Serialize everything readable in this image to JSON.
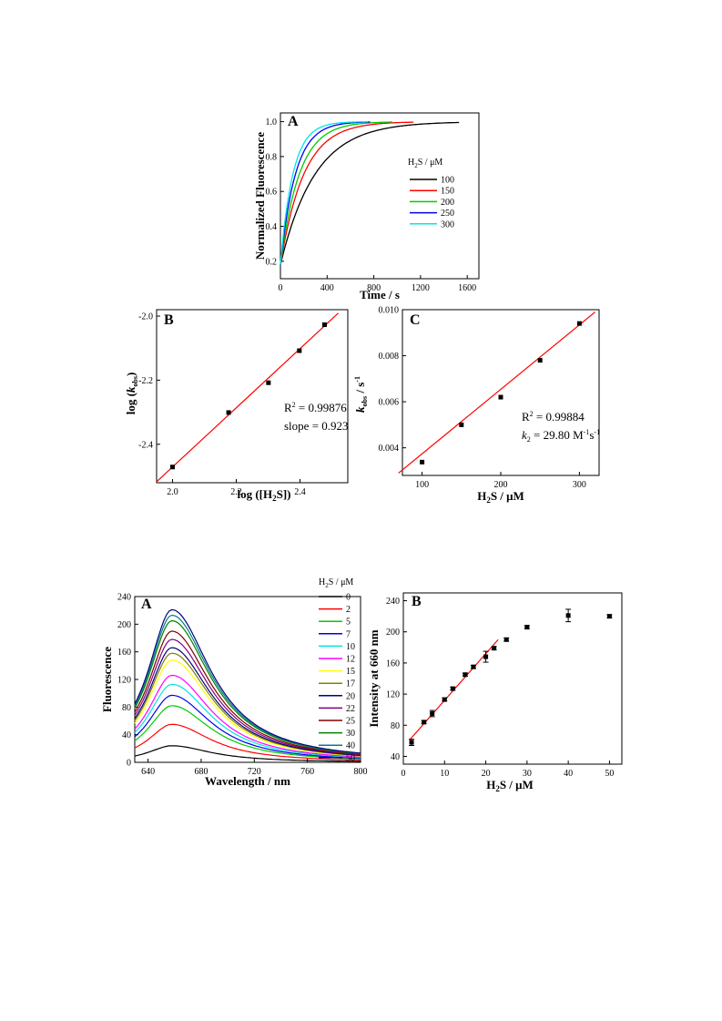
{
  "chart_data": [
    {
      "id": "fig1A",
      "panel_label": "A",
      "type": "line",
      "xlabel": "Time / s",
      "ylabel": "Normalized Fluorescence",
      "xlim": [
        0,
        1700
      ],
      "ylim": [
        0.1,
        1.05
      ],
      "xticks": [
        0,
        400,
        800,
        1200,
        1600
      ],
      "yticks": [
        0.2,
        0.4,
        0.6,
        0.8,
        1.0
      ],
      "xtick_labels": [
        "0",
        "400",
        "800",
        "1200",
        "1600"
      ],
      "ytick_labels": [
        "0.2",
        "0.4",
        "0.6",
        "0.8",
        "1.0"
      ],
      "legend_title": "H2S / μM",
      "legend_position": "center-right",
      "y0": 0.18,
      "series": [
        {
          "name": "100",
          "color": "#000000",
          "k": 0.00338,
          "x_end": 1530
        },
        {
          "name": "150",
          "color": "#ff0000",
          "k": 0.005,
          "x_end": 1140
        },
        {
          "name": "200",
          "color": "#00cc00",
          "k": 0.0062,
          "x_end": 960
        },
        {
          "name": "250",
          "color": "#0000ee",
          "k": 0.0078,
          "x_end": 770
        },
        {
          "name": "300",
          "color": "#00e5e5",
          "k": 0.0094,
          "x_end": 750
        }
      ]
    },
    {
      "id": "fig1B",
      "panel_label": "B",
      "type": "scatter",
      "xlabel": "log ([H2S])",
      "ylabel": "log (kobs)",
      "xlim": [
        1.95,
        2.55
      ],
      "ylim": [
        -2.52,
        -1.98
      ],
      "xticks": [
        2.0,
        2.2,
        2.4
      ],
      "yticks": [
        -2.4,
        -2.2,
        -2.0
      ],
      "xtick_labels": [
        "2.0",
        "2.2",
        "2.4"
      ],
      "ytick_labels": [
        "-2.4",
        "-2.2",
        "-2.0"
      ],
      "points": [
        {
          "x": 2.0,
          "y": -2.471
        },
        {
          "x": 2.176,
          "y": -2.301
        },
        {
          "x": 2.301,
          "y": -2.208
        },
        {
          "x": 2.398,
          "y": -2.108
        },
        {
          "x": 2.477,
          "y": -2.027
        }
      ],
      "fit": {
        "x": [
          1.95,
          2.52
        ],
        "y": [
          -2.517,
          -1.991
        ],
        "color": "#ff0000"
      },
      "annotations": [
        "R2 = 0.99876",
        "slope = 0.923"
      ]
    },
    {
      "id": "fig1C",
      "panel_label": "C",
      "type": "scatter",
      "xlabel": "H2S / μM",
      "ylabel": "kobs / s-1",
      "xlim": [
        75,
        325
      ],
      "ylim": [
        0.0028,
        0.01
      ],
      "xticks": [
        100,
        200,
        300
      ],
      "yticks": [
        0.004,
        0.006,
        0.008,
        0.01
      ],
      "xtick_labels": [
        "100",
        "200",
        "300"
      ],
      "ytick_labels": [
        "0.004",
        "0.006",
        "0.008",
        "0.010"
      ],
      "points": [
        {
          "x": 100,
          "y": 0.00338
        },
        {
          "x": 150,
          "y": 0.005
        },
        {
          "x": 200,
          "y": 0.0062
        },
        {
          "x": 250,
          "y": 0.0078
        },
        {
          "x": 300,
          "y": 0.0094
        }
      ],
      "fit": {
        "x": [
          70,
          320
        ],
        "y": [
          0.0029,
          0.0099
        ],
        "color": "#ff0000"
      },
      "annotations": [
        "R2 = 0.99884",
        "k2 = 29.80 M-1s-1"
      ]
    },
    {
      "id": "fig2A",
      "panel_label": "A",
      "type": "line",
      "xlabel": "Wavelength / nm",
      "ylabel": "Fluorescence",
      "xlim": [
        630,
        800
      ],
      "ylim": [
        0,
        240
      ],
      "xticks": [
        640,
        680,
        720,
        760,
        800
      ],
      "yticks": [
        0,
        40,
        80,
        120,
        160,
        200,
        240
      ],
      "xtick_labels": [
        "640",
        "680",
        "720",
        "760",
        "800"
      ],
      "ytick_labels": [
        "0",
        "40",
        "80",
        "120",
        "160",
        "200",
        "240"
      ],
      "peak_x": 658,
      "legend_title": "H2S / μM",
      "legend_position": "right-outside",
      "series": [
        {
          "name": "0",
          "color": "#000000",
          "peak": 24
        },
        {
          "name": "2",
          "color": "#ff0000",
          "peak": 55
        },
        {
          "name": "5",
          "color": "#00cc00",
          "peak": 82
        },
        {
          "name": "7",
          "color": "#0000ee",
          "peak": 97
        },
        {
          "name": "10",
          "color": "#00e5e5",
          "peak": 113
        },
        {
          "name": "12",
          "color": "#ff00ff",
          "peak": 126
        },
        {
          "name": "15",
          "color": "#ffff00",
          "peak": 148
        },
        {
          "name": "17",
          "color": "#808000",
          "peak": 158
        },
        {
          "name": "20",
          "color": "#000080",
          "peak": 166
        },
        {
          "name": "22",
          "color": "#800080",
          "peak": 178
        },
        {
          "name": "25",
          "color": "#800000",
          "peak": 190
        },
        {
          "name": "30",
          "color": "#008000",
          "peak": 205
        },
        {
          "name": "40",
          "color": "#008080",
          "peak": 213
        },
        {
          "name": "50",
          "color": "#000080",
          "peak": 221
        }
      ]
    },
    {
      "id": "fig2B",
      "panel_label": "B",
      "type": "scatter",
      "xlabel": "H2S / μM",
      "ylabel": "Intensity at 660 nm",
      "xlim": [
        0,
        53
      ],
      "ylim": [
        30,
        250
      ],
      "xticks": [
        0,
        10,
        20,
        30,
        40,
        50
      ],
      "yticks": [
        40,
        80,
        120,
        160,
        200,
        240
      ],
      "xtick_labels": [
        "0",
        "10",
        "20",
        "30",
        "40",
        "50"
      ],
      "ytick_labels": [
        "40",
        "80",
        "120",
        "160",
        "200",
        "240"
      ],
      "points": [
        {
          "x": 2,
          "y": 58,
          "err": 4
        },
        {
          "x": 5,
          "y": 84,
          "err": 2
        },
        {
          "x": 7,
          "y": 95,
          "err": 4
        },
        {
          "x": 10,
          "y": 113,
          "err": 2
        },
        {
          "x": 12,
          "y": 127,
          "err": 2
        },
        {
          "x": 15,
          "y": 145,
          "err": 2
        },
        {
          "x": 17,
          "y": 155,
          "err": 2
        },
        {
          "x": 20,
          "y": 168,
          "err": 7
        },
        {
          "x": 22,
          "y": 179,
          "err": 2
        },
        {
          "x": 25,
          "y": 190,
          "err": 2
        },
        {
          "x": 30,
          "y": 206,
          "err": 2
        },
        {
          "x": 40,
          "y": 221,
          "err": 8
        },
        {
          "x": 50,
          "y": 220,
          "err": 2
        }
      ],
      "fit": {
        "x": [
          1.5,
          23
        ],
        "y": [
          61,
          190
        ],
        "color": "#ff0000"
      }
    }
  ]
}
